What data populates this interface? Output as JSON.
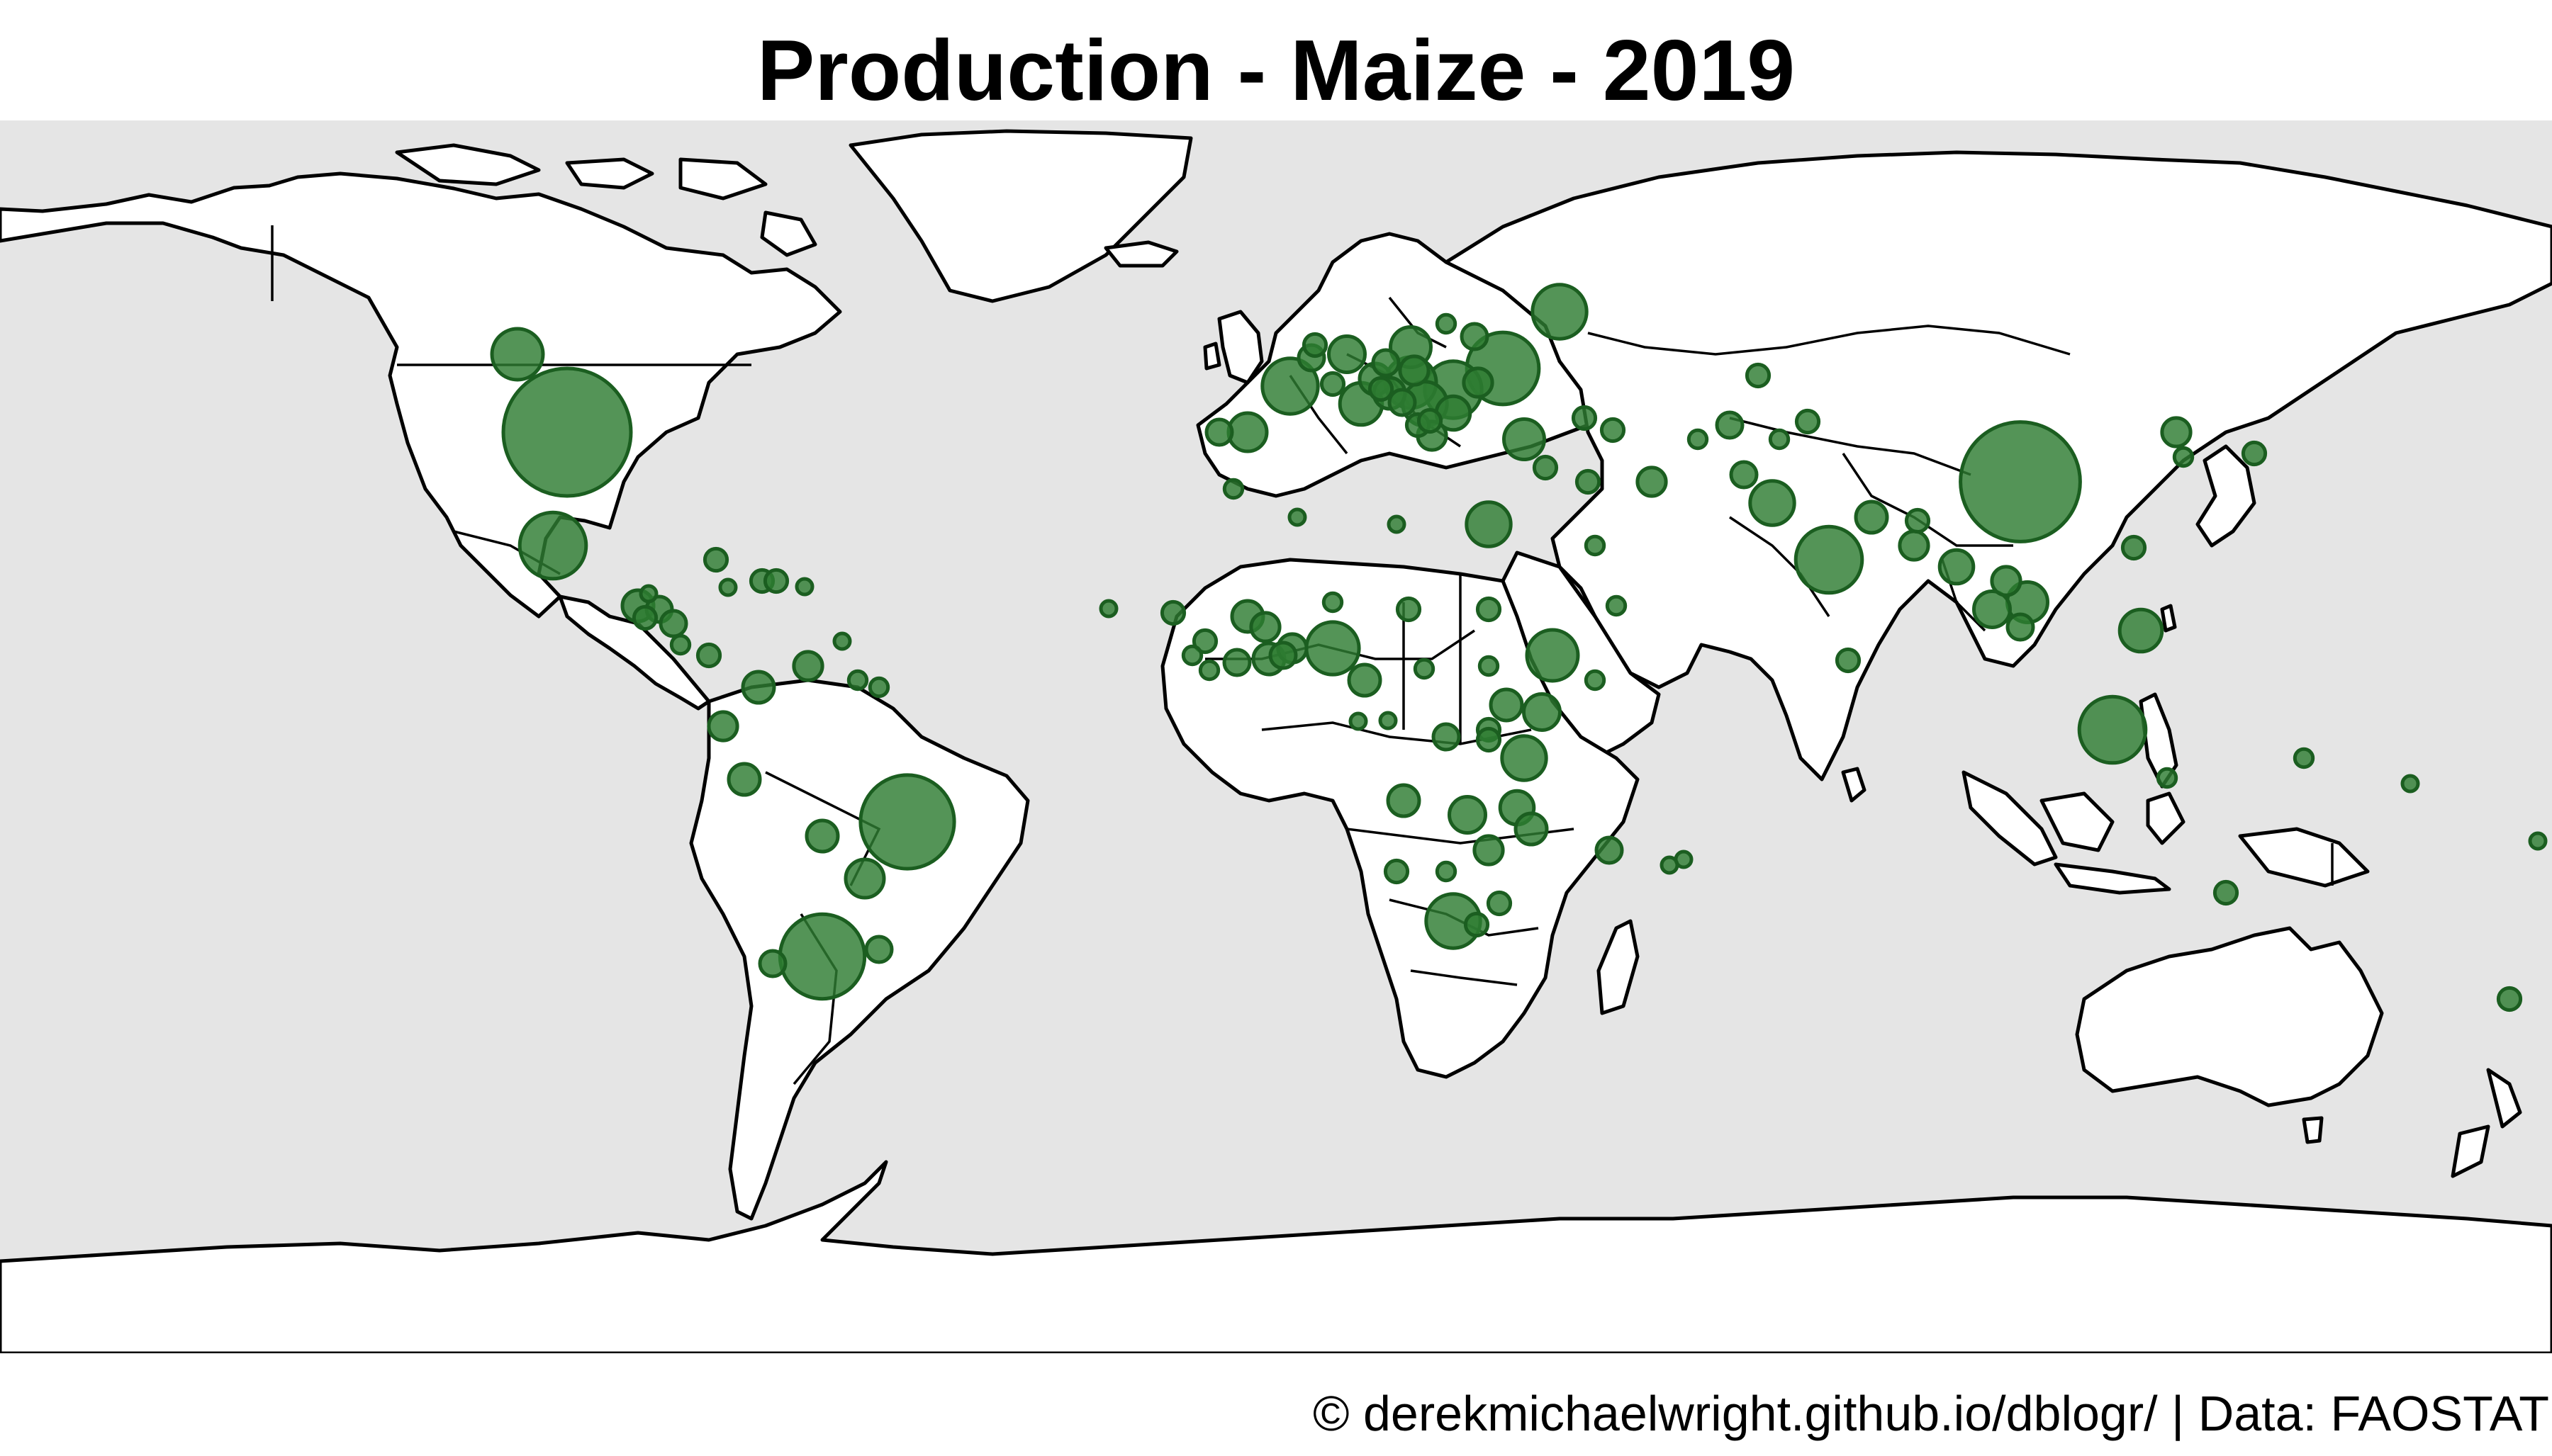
{
  "title": "Production - Maize - 2019",
  "caption": "© derekmichaelwright.github.io/dblogr/ | Data: FAOSTAT",
  "colors": {
    "ocean": "#e5e5e5",
    "land": "#ffffff",
    "outline": "#000000",
    "bubble_fill": "#2e7d32",
    "bubble_stroke": "#1b5e20"
  },
  "map_data": {
    "type": "proportional-symbol-map",
    "projection": "equirectangular",
    "variable": "maize production 2019",
    "points": [
      {
        "region": "USA",
        "lon": -100,
        "lat": 40,
        "size": 1.0
      },
      {
        "region": "China",
        "lon": 105,
        "lat": 33,
        "size": 0.88
      },
      {
        "region": "Brazil",
        "lon": -52,
        "lat": -15,
        "size": 0.54
      },
      {
        "region": "Argentina",
        "lon": -64,
        "lat": -34,
        "size": 0.44
      },
      {
        "region": "Ukraine",
        "lon": 32,
        "lat": 49,
        "size": 0.32
      },
      {
        "region": "India",
        "lon": 78,
        "lat": 22,
        "size": 0.27
      },
      {
        "region": "Indonesia",
        "lon": 118,
        "lat": -2,
        "size": 0.27
      },
      {
        "region": "Mexico",
        "lon": -102,
        "lat": 24,
        "size": 0.27
      },
      {
        "region": "South Africa",
        "lon": 25,
        "lat": -29,
        "size": 0.18
      },
      {
        "region": "Romania",
        "lon": 25,
        "lat": 46,
        "size": 0.2
      },
      {
        "region": "France",
        "lon": 2,
        "lat": 46.5,
        "size": 0.19
      },
      {
        "region": "Russia",
        "lon": 40,
        "lat": 57,
        "size": 0.18
      },
      {
        "region": "Canada",
        "lon": -107,
        "lat": 51,
        "size": 0.16
      },
      {
        "region": "Hungary",
        "lon": 19,
        "lat": 47,
        "size": 0.16
      },
      {
        "region": "Nigeria",
        "lon": 8,
        "lat": 9.5,
        "size": 0.17
      },
      {
        "region": "Ethiopia",
        "lon": 39,
        "lat": 8.5,
        "size": 0.16
      },
      {
        "region": "Egypt",
        "lon": 30,
        "lat": 27,
        "size": 0.12
      },
      {
        "region": "Philippines",
        "lon": 122,
        "lat": 12,
        "size": 0.11
      },
      {
        "region": "Pakistan",
        "lon": 70,
        "lat": 30,
        "size": 0.12
      },
      {
        "region": "Tanzania",
        "lon": 35,
        "lat": -6,
        "size": 0.12
      },
      {
        "region": "Vietnam",
        "lon": 106,
        "lat": 16,
        "size": 0.1
      },
      {
        "region": "Italy",
        "lon": 12,
        "lat": 44,
        "size": 0.11
      },
      {
        "region": "Serbia",
        "lon": 21,
        "lat": 44,
        "size": 0.12
      },
      {
        "region": "Poland",
        "lon": 19,
        "lat": 52,
        "size": 0.1
      },
      {
        "region": "Paraguay",
        "lon": -58,
        "lat": -23,
        "size": 0.09
      },
      {
        "region": "Turkey",
        "lon": 35,
        "lat": 39,
        "size": 0.1
      },
      {
        "region": "Spain",
        "lon": -4,
        "lat": 40,
        "size": 0.09
      },
      {
        "region": "Germany",
        "lon": 10,
        "lat": 51,
        "size": 0.08
      },
      {
        "region": "Thailand",
        "lon": 101,
        "lat": 15,
        "size": 0.08
      },
      {
        "region": "Kenya",
        "lon": 37.5,
        "lat": 0.5,
        "size": 0.08
      },
      {
        "region": "Zambia",
        "lon": 27,
        "lat": -14,
        "size": 0.08
      },
      {
        "region": "Malawi",
        "lon": 34,
        "lat": -13,
        "size": 0.07
      },
      {
        "region": "Myanmar",
        "lon": 96,
        "lat": 21,
        "size": 0.07
      },
      {
        "region": "Nepal",
        "lon": 84,
        "lat": 28,
        "size": 0.06
      },
      {
        "region": "Mali",
        "lon": -4,
        "lat": 14,
        "size": 0.06
      },
      {
        "region": "Ghana",
        "lon": -1,
        "lat": 8,
        "size": 0.06
      },
      {
        "region": "Peru",
        "lon": -75,
        "lat": -9,
        "size": 0.06
      },
      {
        "region": "Colombia",
        "lon": -73,
        "lat": 4,
        "size": 0.06
      },
      {
        "region": "Guatemala",
        "lon": -90,
        "lat": 15.5,
        "size": 0.06
      },
      {
        "region": "Bolivia",
        "lon": -64,
        "lat": -17,
        "size": 0.06
      },
      {
        "region": "Uganda",
        "lon": 32.5,
        "lat": 1.5,
        "size": 0.06
      },
      {
        "region": "Mozambique",
        "lon": 36,
        "lat": -16,
        "size": 0.06
      },
      {
        "region": "Angola",
        "lon": 18,
        "lat": -12,
        "size": 0.06
      },
      {
        "region": "Zimbabwe",
        "lon": 30,
        "lat": -19,
        "size": 0.05
      },
      {
        "region": "Laos",
        "lon": 103,
        "lat": 19,
        "size": 0.05
      },
      {
        "region": "North Korea",
        "lon": 127,
        "lat": 40,
        "size": 0.05
      },
      {
        "region": "Uzbekistan",
        "lon": 64,
        "lat": 41,
        "size": 0.04
      },
      {
        "region": "Iran",
        "lon": 53,
        "lat": 33,
        "size": 0.05
      },
      {
        "region": "Venezuela",
        "lon": -66,
        "lat": 7,
        "size": 0.05
      },
      {
        "region": "Ecuador",
        "lon": -78,
        "lat": -1.5,
        "size": 0.05
      },
      {
        "region": "Austria",
        "lon": 14,
        "lat": 47.5,
        "size": 0.06
      },
      {
        "region": "Belgium",
        "lon": 5,
        "lat": 50.5,
        "size": 0.04
      },
      {
        "region": "Greece",
        "lon": 22,
        "lat": 39.5,
        "size": 0.05
      },
      {
        "region": "Bulgaria",
        "lon": 25,
        "lat": 42.7,
        "size": 0.07
      },
      {
        "region": "Moldova",
        "lon": 28.5,
        "lat": 47,
        "size": 0.05
      },
      {
        "region": "Croatia",
        "lon": 16,
        "lat": 45.5,
        "size": 0.06
      },
      {
        "region": "Slovakia",
        "lon": 19.5,
        "lat": 48.7,
        "size": 0.05
      },
      {
        "region": "Portugal",
        "lon": -8,
        "lat": 40,
        "size": 0.04
      },
      {
        "region": "Cameroon",
        "lon": 12.5,
        "lat": 5,
        "size": 0.06
      },
      {
        "region": "Burkina Faso",
        "lon": -1.5,
        "lat": 12.5,
        "size": 0.05
      },
      {
        "region": "Benin",
        "lon": 2.3,
        "lat": 9.5,
        "size": 0.05
      },
      {
        "region": "DR Congo",
        "lon": 24,
        "lat": -3,
        "size": 0.04
      },
      {
        "region": "Madagascar",
        "lon": 47,
        "lat": -19,
        "size": 0.04
      },
      {
        "region": "Cambodia",
        "lon": 105,
        "lat": 12.5,
        "size": 0.04
      },
      {
        "region": "Bangladesh",
        "lon": 90,
        "lat": 24,
        "size": 0.05
      },
      {
        "region": "Afghanistan",
        "lon": 66,
        "lat": 34,
        "size": 0.04
      },
      {
        "region": "Kazakhstan",
        "lon": 68,
        "lat": 48,
        "size": 0.03
      },
      {
        "region": "Japan",
        "lon": 138,
        "lat": 37,
        "size": 0.03
      },
      {
        "region": "Australia",
        "lon": 134,
        "lat": -25,
        "size": 0.03
      },
      {
        "region": "New Zealand",
        "lon": 174,
        "lat": -40,
        "size": 0.03
      },
      {
        "region": "Chile",
        "lon": -71,
        "lat": -35,
        "size": 0.04
      },
      {
        "region": "Uruguay",
        "lon": -56,
        "lat": -33,
        "size": 0.04
      },
      {
        "region": "Cuba",
        "lon": -79,
        "lat": 22,
        "size": 0.03
      },
      {
        "region": "Honduras",
        "lon": -87,
        "lat": 15,
        "size": 0.04
      },
      {
        "region": "Nicaragua",
        "lon": -85,
        "lat": 13,
        "size": 0.04
      },
      {
        "region": "El Salvador",
        "lon": -89,
        "lat": 13.8,
        "size": 0.03
      },
      {
        "region": "Haiti",
        "lon": -72.5,
        "lat": 19,
        "size": 0.03
      },
      {
        "region": "Senegal",
        "lon": -14.5,
        "lat": 14.5,
        "size": 0.03
      },
      {
        "region": "Guinea",
        "lon": -10,
        "lat": 10.5,
        "size": 0.03
      },
      {
        "region": "Togo",
        "lon": 1,
        "lat": 8.5,
        "size": 0.04
      },
      {
        "region": "Côte d'Ivoire",
        "lon": -5.5,
        "lat": 7.5,
        "size": 0.04
      },
      {
        "region": "Sudan",
        "lon": 30,
        "lat": 15,
        "size": 0.03
      },
      {
        "region": "Rwanda",
        "lon": 30,
        "lat": -2,
        "size": 0.03
      },
      {
        "region": "Burundi",
        "lon": 30,
        "lat": -3.4,
        "size": 0.03
      },
      {
        "region": "Lesotho",
        "lon": 28.3,
        "lat": -29.5,
        "size": 0.03
      },
      {
        "region": "Eswatini",
        "lon": 31.5,
        "lat": -26.5,
        "size": 0.03
      },
      {
        "region": "Namibia",
        "lon": 17,
        "lat": -22,
        "size": 0.03
      },
      {
        "region": "Botswana",
        "lon": 24,
        "lat": -22,
        "size": 0.02
      },
      {
        "region": "Kyrgyzstan",
        "lon": 75,
        "lat": 41.5,
        "size": 0.03
      },
      {
        "region": "Georgia",
        "lon": 43.5,
        "lat": 42,
        "size": 0.03
      },
      {
        "region": "Azerbaijan",
        "lon": 47.5,
        "lat": 40.3,
        "size": 0.03
      },
      {
        "region": "Iraq",
        "lon": 44,
        "lat": 33,
        "size": 0.03
      },
      {
        "region": "Syria",
        "lon": 38,
        "lat": 35,
        "size": 0.03
      },
      {
        "region": "Saudi Arabia",
        "lon": 45,
        "lat": 24,
        "size": 0.02
      },
      {
        "region": "Yemen",
        "lon": 48,
        "lat": 15.5,
        "size": 0.02
      },
      {
        "region": "Sri Lanka",
        "lon": 80.7,
        "lat": 7.8,
        "size": 0.03
      },
      {
        "region": "Bhutan",
        "lon": 90.5,
        "lat": 27.5,
        "size": 0.03
      },
      {
        "region": "Taiwan",
        "lon": 121,
        "lat": 23.7,
        "size": 0.03
      },
      {
        "region": "South Korea",
        "lon": 128,
        "lat": 36.5,
        "size": 0.02
      },
      {
        "region": "Papua New Guinea",
        "lon": 145,
        "lat": -6,
        "size": 0.02
      },
      {
        "region": "Timor-Leste",
        "lon": 125.7,
        "lat": -8.8,
        "size": 0.02
      },
      {
        "region": "Costa Rica",
        "lon": -84,
        "lat": 10,
        "size": 0.02
      },
      {
        "region": "Panama",
        "lon": -80,
        "lat": 8.5,
        "size": 0.03
      },
      {
        "region": "Dominican Republic",
        "lon": -70.5,
        "lat": 19,
        "size": 0.03
      },
      {
        "region": "Guyana",
        "lon": -59,
        "lat": 5,
        "size": 0.02
      },
      {
        "region": "Suriname",
        "lon": -56,
        "lat": 4,
        "size": 0.02
      },
      {
        "region": "Switzerland",
        "lon": 8,
        "lat": 46.8,
        "size": 0.03
      },
      {
        "region": "Netherlands",
        "lon": 5.5,
        "lat": 52.3,
        "size": 0.03
      },
      {
        "region": "Czechia",
        "lon": 15.5,
        "lat": 49.8,
        "size": 0.04
      },
      {
        "region": "Slovenia",
        "lon": 14.8,
        "lat": 46.1,
        "size": 0.03
      },
      {
        "region": "Bosnia and Herzegovina",
        "lon": 17.8,
        "lat": 44.2,
        "size": 0.04
      },
      {
        "region": "Albania",
        "lon": 20,
        "lat": 41,
        "size": 0.03
      },
      {
        "region": "North Macedonia",
        "lon": 21.7,
        "lat": 41.6,
        "size": 0.03
      },
      {
        "region": "Belarus",
        "lon": 28,
        "lat": 53.5,
        "size": 0.04
      },
      {
        "region": "Lithuania",
        "lon": 24,
        "lat": 55.3,
        "size": 0.02
      },
      {
        "region": "Morocco",
        "lon": -6,
        "lat": 32,
        "size": 0.02
      },
      {
        "region": "Algeria",
        "lon": 3,
        "lat": 28,
        "size": 0.015
      },
      {
        "region": "Libya",
        "lon": 17,
        "lat": 27,
        "size": 0.015
      },
      {
        "region": "Chad",
        "lon": 18.7,
        "lat": 15,
        "size": 0.03
      },
      {
        "region": "Niger",
        "lon": 8,
        "lat": 16,
        "size": 0.02
      },
      {
        "region": "Central African Republic",
        "lon": 20.9,
        "lat": 6.6,
        "size": 0.02
      },
      {
        "region": "South Sudan",
        "lon": 30,
        "lat": 7,
        "size": 0.02
      },
      {
        "region": "Somalia",
        "lon": 45,
        "lat": 5,
        "size": 0.02
      },
      {
        "region": "Sierra Leone",
        "lon": -11.8,
        "lat": 8.5,
        "size": 0.02
      },
      {
        "region": "Liberia",
        "lon": -9.4,
        "lat": 6.4,
        "size": 0.02
      },
      {
        "region": "Gabon",
        "lon": 11.6,
        "lat": -0.8,
        "size": 0.015
      },
      {
        "region": "Congo",
        "lon": 15.8,
        "lat": -0.7,
        "size": 0.015
      },
      {
        "region": "Tajikistan",
        "lon": 71,
        "lat": 39,
        "size": 0.02
      },
      {
        "region": "Turkmenistan",
        "lon": 59.5,
        "lat": 39,
        "size": 0.02
      },
      {
        "region": "Mauritius",
        "lon": 57.5,
        "lat": -20.3,
        "size": 0.015
      },
      {
        "region": "Fiji",
        "lon": 178,
        "lat": -17.7,
        "size": 0.015
      },
      {
        "region": "Solomon Islands",
        "lon": 160,
        "lat": -9.6,
        "size": 0.015
      },
      {
        "region": "Réunion",
        "lon": 55.5,
        "lat": -21.1,
        "size": 0.015
      },
      {
        "region": "Cabo Verde",
        "lon": -23.6,
        "lat": 15.1,
        "size": 0.015
      },
      {
        "region": "Jamaica",
        "lon": -77.3,
        "lat": 18.1,
        "size": 0.015
      },
      {
        "region": "Puerto Rico",
        "lon": -66.5,
        "lat": 18.2,
        "size": 0.015
      },
      {
        "region": "Trinidad and Tobago",
        "lon": -61.2,
        "lat": 10.5,
        "size": 0.015
      },
      {
        "region": "Belize",
        "lon": -88.5,
        "lat": 17.2,
        "size": 0.015
      }
    ]
  }
}
